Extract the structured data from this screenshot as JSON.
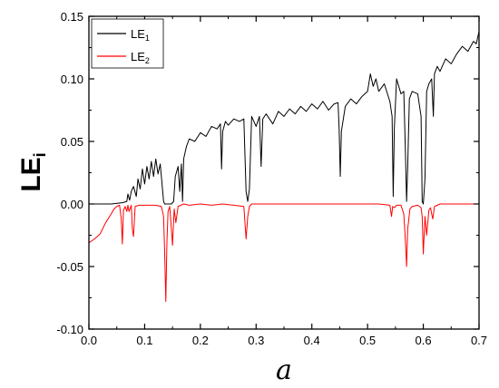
{
  "chart_data": {
    "type": "line",
    "xlabel": "a",
    "ylabel": {
      "main": "LE",
      "sub": "i"
    },
    "xlim": [
      0.0,
      0.7
    ],
    "ylim": [
      -0.1,
      0.15
    ],
    "x_ticks": [
      0.0,
      0.1,
      0.2,
      0.3,
      0.4,
      0.5,
      0.6,
      0.7
    ],
    "x_tick_labels": [
      "0.0",
      "0.1",
      "0.2",
      "0.3",
      "0.4",
      "0.5",
      "0.6",
      "0.7"
    ],
    "y_ticks": [
      -0.1,
      -0.05,
      0.0,
      0.05,
      0.1,
      0.15
    ],
    "y_tick_labels": [
      "-0.10",
      "-0.05",
      "0.00",
      "0.05",
      "0.10",
      "0.15"
    ],
    "grid": false,
    "legend_position": "top-left",
    "series": [
      {
        "name": "LE",
        "name_sub": "1",
        "color": "#000000",
        "x": [
          0.0,
          0.02,
          0.04,
          0.06,
          0.068,
          0.07,
          0.073,
          0.076,
          0.08,
          0.085,
          0.088,
          0.092,
          0.096,
          0.1,
          0.104,
          0.108,
          0.112,
          0.116,
          0.12,
          0.124,
          0.128,
          0.132,
          0.134,
          0.136,
          0.14,
          0.144,
          0.148,
          0.152,
          0.155,
          0.16,
          0.163,
          0.166,
          0.168,
          0.17,
          0.175,
          0.18,
          0.19,
          0.2,
          0.21,
          0.22,
          0.23,
          0.236,
          0.238,
          0.24,
          0.245,
          0.25,
          0.26,
          0.27,
          0.278,
          0.282,
          0.285,
          0.288,
          0.292,
          0.3,
          0.306,
          0.309,
          0.312,
          0.318,
          0.33,
          0.34,
          0.35,
          0.36,
          0.37,
          0.38,
          0.39,
          0.4,
          0.41,
          0.42,
          0.43,
          0.44,
          0.447,
          0.449,
          0.451,
          0.453,
          0.46,
          0.47,
          0.48,
          0.49,
          0.5,
          0.505,
          0.51,
          0.515,
          0.52,
          0.53,
          0.54,
          0.544,
          0.546,
          0.548,
          0.552,
          0.56,
          0.565,
          0.568,
          0.57,
          0.572,
          0.575,
          0.58,
          0.59,
          0.596,
          0.598,
          0.6,
          0.603,
          0.606,
          0.61,
          0.615,
          0.618,
          0.62,
          0.625,
          0.63,
          0.64,
          0.65,
          0.66,
          0.67,
          0.68,
          0.69,
          0.695,
          0.7
        ],
        "y": [
          0.0,
          0.0,
          0.0,
          0.001,
          0.002,
          0.008,
          0.003,
          0.01,
          0.014,
          0.006,
          0.02,
          0.012,
          0.028,
          0.016,
          0.03,
          0.02,
          0.034,
          0.022,
          0.036,
          0.024,
          0.032,
          0.012,
          0.002,
          0.0,
          0.0,
          0.0,
          0.0,
          0.002,
          0.022,
          0.03,
          0.01,
          0.032,
          0.002,
          0.036,
          0.046,
          0.052,
          0.05,
          0.057,
          0.054,
          0.062,
          0.06,
          0.064,
          0.028,
          0.058,
          0.066,
          0.063,
          0.068,
          0.066,
          0.068,
          0.01,
          0.002,
          0.012,
          0.07,
          0.062,
          0.07,
          0.03,
          0.068,
          0.072,
          0.064,
          0.074,
          0.07,
          0.076,
          0.072,
          0.078,
          0.074,
          0.08,
          0.076,
          0.082,
          0.075,
          0.08,
          0.081,
          0.06,
          0.022,
          0.058,
          0.078,
          0.084,
          0.08,
          0.086,
          0.09,
          0.104,
          0.094,
          0.1,
          0.09,
          0.096,
          0.082,
          0.07,
          0.006,
          0.06,
          0.1,
          0.088,
          0.09,
          0.04,
          0.002,
          0.03,
          0.084,
          0.09,
          0.088,
          0.07,
          0.002,
          0.0,
          0.02,
          0.09,
          0.096,
          0.1,
          0.07,
          0.104,
          0.11,
          0.106,
          0.116,
          0.112,
          0.12,
          0.126,
          0.122,
          0.13,
          0.128,
          0.138
        ]
      },
      {
        "name": "LE",
        "name_sub": "2",
        "color": "#ff0000",
        "x": [
          0.0,
          0.01,
          0.02,
          0.03,
          0.04,
          0.045,
          0.05,
          0.055,
          0.058,
          0.06,
          0.062,
          0.065,
          0.068,
          0.07,
          0.072,
          0.076,
          0.078,
          0.08,
          0.083,
          0.09,
          0.1,
          0.11,
          0.12,
          0.13,
          0.134,
          0.136,
          0.138,
          0.14,
          0.142,
          0.145,
          0.148,
          0.15,
          0.153,
          0.156,
          0.16,
          0.165,
          0.17,
          0.18,
          0.2,
          0.22,
          0.24,
          0.26,
          0.278,
          0.282,
          0.285,
          0.288,
          0.292,
          0.3,
          0.32,
          0.34,
          0.36,
          0.38,
          0.4,
          0.42,
          0.44,
          0.46,
          0.48,
          0.5,
          0.52,
          0.54,
          0.543,
          0.545,
          0.548,
          0.552,
          0.56,
          0.565,
          0.568,
          0.57,
          0.572,
          0.576,
          0.58,
          0.59,
          0.596,
          0.598,
          0.6,
          0.603,
          0.606,
          0.61,
          0.613,
          0.615,
          0.617,
          0.62,
          0.63,
          0.65,
          0.67,
          0.69,
          0.7
        ],
        "y": [
          -0.031,
          -0.028,
          -0.024,
          -0.015,
          -0.008,
          -0.004,
          -0.002,
          -0.001,
          -0.012,
          -0.032,
          -0.005,
          -0.002,
          -0.006,
          -0.001,
          -0.006,
          -0.001,
          -0.02,
          -0.026,
          -0.002,
          -0.001,
          -0.001,
          -0.001,
          -0.001,
          -0.002,
          -0.01,
          -0.04,
          -0.078,
          -0.03,
          -0.006,
          -0.002,
          -0.02,
          -0.033,
          -0.004,
          -0.015,
          -0.002,
          -0.001,
          0.0,
          -0.001,
          0.0,
          -0.001,
          0.0,
          -0.001,
          -0.002,
          -0.028,
          -0.01,
          -0.002,
          0.0,
          0.0,
          0.0,
          0.0,
          0.0,
          0.0,
          0.0,
          0.0,
          0.0,
          0.0,
          0.0,
          0.0,
          0.0,
          -0.001,
          -0.01,
          -0.002,
          -0.003,
          -0.001,
          -0.001,
          -0.008,
          -0.03,
          -0.05,
          -0.02,
          -0.004,
          -0.002,
          -0.001,
          -0.003,
          -0.01,
          -0.04,
          -0.01,
          -0.025,
          -0.005,
          -0.003,
          -0.008,
          -0.012,
          -0.002,
          0.0,
          0.0,
          0.0,
          0.0,
          0.0
        ]
      }
    ]
  }
}
